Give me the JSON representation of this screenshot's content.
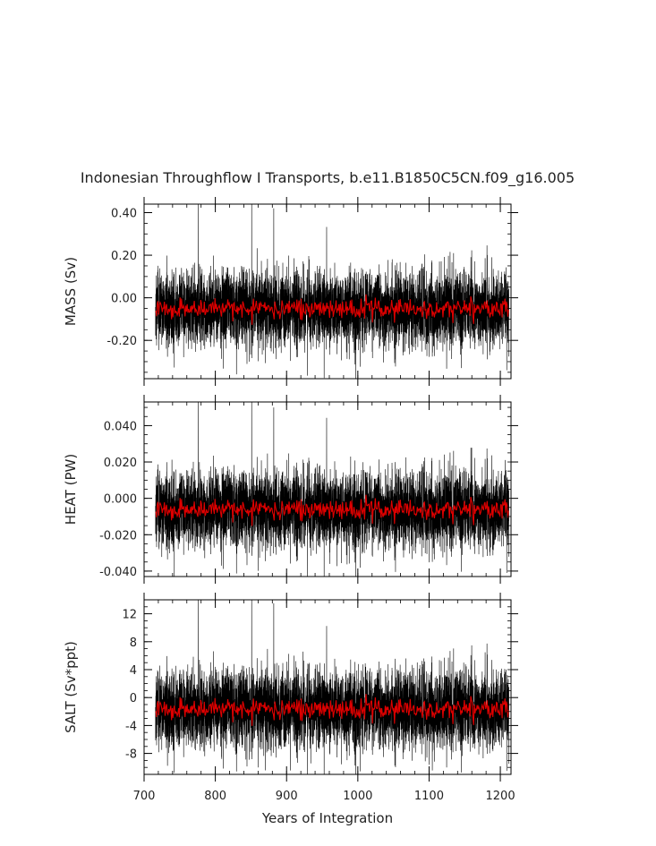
{
  "figure": {
    "title": "Indonesian Throughflow I Transports, b.e11.B1850C5CN.f09_g16.005",
    "xlabel": "Years of Integration"
  },
  "colors": {
    "raw_series": "#000000",
    "smoothed_series": "#e00000",
    "axes": "#000000"
  },
  "chart_data": [
    {
      "type": "line",
      "ylabel": "MASS (Sv)",
      "xlim": [
        700,
        1215
      ],
      "ylim": [
        -0.38,
        0.44
      ],
      "x_ticks": [
        700,
        800,
        900,
        1000,
        1100,
        1200
      ],
      "x_tick_labels": [
        "700",
        "800",
        "900",
        "1000",
        "1100",
        "1200"
      ],
      "y_ticks": [
        -0.2,
        0.0,
        0.2,
        0.4
      ],
      "y_tick_labels": [
        "-0.20",
        "0.00",
        "0.20",
        "0.40"
      ],
      "x_range": [
        716,
        1212
      ],
      "grid": false,
      "series": [
        {
          "style": "raw monthly",
          "mean": -0.05,
          "spread": 0.1,
          "spikes": [
            [
              776,
              0.44
            ],
            [
              851,
              0.44
            ],
            [
              882,
              0.42
            ],
            [
              997,
              -0.38
            ],
            [
              1209,
              -0.34
            ]
          ]
        },
        {
          "style": "smoothed",
          "mean": -0.05,
          "spread": 0.025
        }
      ]
    },
    {
      "type": "line",
      "ylabel": "HEAT (PW)",
      "xlim": [
        700,
        1215
      ],
      "ylim": [
        -0.043,
        0.053
      ],
      "x_ticks": [
        700,
        800,
        900,
        1000,
        1100,
        1200
      ],
      "x_tick_labels": [
        "700",
        "800",
        "900",
        "1000",
        "1100",
        "1200"
      ],
      "y_ticks": [
        -0.04,
        -0.02,
        0.0,
        0.02,
        0.04
      ],
      "y_tick_labels": [
        "-0.040",
        "-0.020",
        "0.000",
        "0.020",
        "0.040"
      ],
      "x_range": [
        716,
        1212
      ],
      "grid": false,
      "series": [
        {
          "style": "raw monthly",
          "mean": -0.006,
          "spread": 0.012,
          "spikes": [
            [
              776,
              0.053
            ],
            [
              851,
              0.053
            ],
            [
              882,
              0.05
            ],
            [
              997,
              -0.043
            ],
            [
              1209,
              -0.041
            ]
          ]
        },
        {
          "style": "smoothed",
          "mean": -0.006,
          "spread": 0.003
        }
      ]
    },
    {
      "type": "line",
      "ylabel": "SALT (Sv*ppt)",
      "xlim": [
        700,
        1215
      ],
      "ylim": [
        -11,
        14
      ],
      "x_ticks": [
        700,
        800,
        900,
        1000,
        1100,
        1200
      ],
      "x_tick_labels": [
        "700",
        "800",
        "900",
        "1000",
        "1100",
        "1200"
      ],
      "y_ticks": [
        -8,
        -4,
        0,
        4,
        8,
        12
      ],
      "y_tick_labels": [
        "-8",
        "-4",
        "0",
        "4",
        "8",
        "12"
      ],
      "x_range": [
        716,
        1212
      ],
      "grid": false,
      "series": [
        {
          "style": "raw monthly",
          "mean": -1.6,
          "spread": 3.2,
          "spikes": [
            [
              776,
              14
            ],
            [
              851,
              14
            ],
            [
              882,
              13.5
            ],
            [
              997,
              -11
            ],
            [
              1209,
              -10.5
            ]
          ]
        },
        {
          "style": "smoothed",
          "mean": -1.6,
          "spread": 0.8
        }
      ]
    }
  ]
}
